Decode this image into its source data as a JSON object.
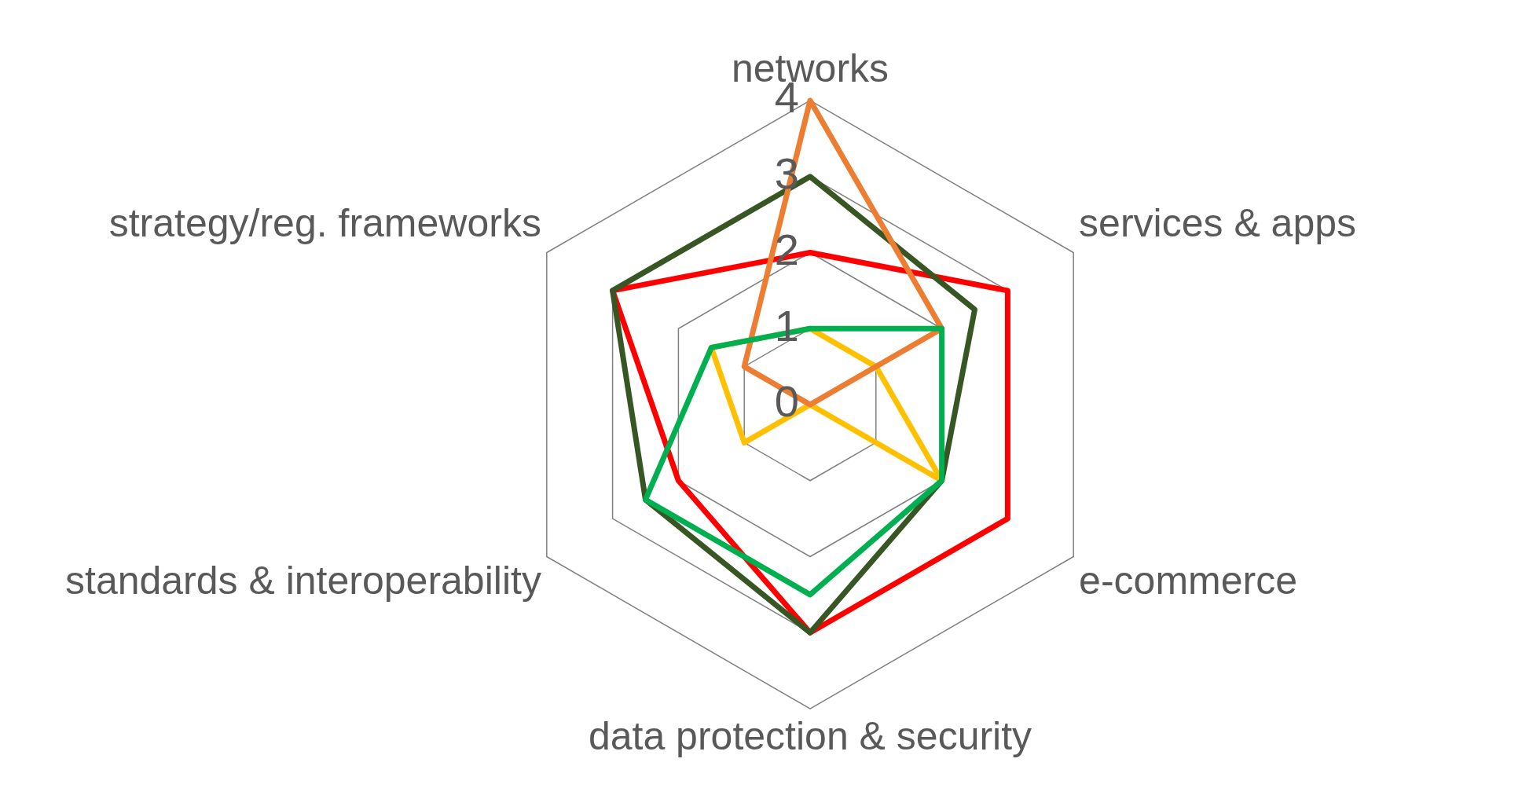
{
  "chart_data": {
    "type": "radar",
    "categories": [
      "networks",
      "services & apps",
      "e-commerce",
      "data protection & security",
      "standards & interoperability",
      "strategy/reg. frameworks"
    ],
    "series": [
      {
        "color": "#00b050",
        "values": [
          1,
          2,
          2,
          2.5,
          2.5,
          1.5
        ]
      },
      {
        "color": "#ed7d31",
        "values": [
          4,
          2,
          0,
          0,
          0,
          1
        ]
      },
      {
        "color": "#375623",
        "values": [
          3,
          2.5,
          2,
          3,
          2.5,
          3
        ]
      },
      {
        "color": "#ff0000",
        "values": [
          2,
          3,
          3,
          3,
          2,
          3
        ]
      },
      {
        "color": "#ffc000",
        "values": [
          1,
          1,
          2,
          0,
          1,
          1.5
        ]
      }
    ],
    "ylim": [
      0,
      4
    ],
    "yticks": [
      0,
      1,
      2,
      3,
      4
    ],
    "grid": true
  }
}
